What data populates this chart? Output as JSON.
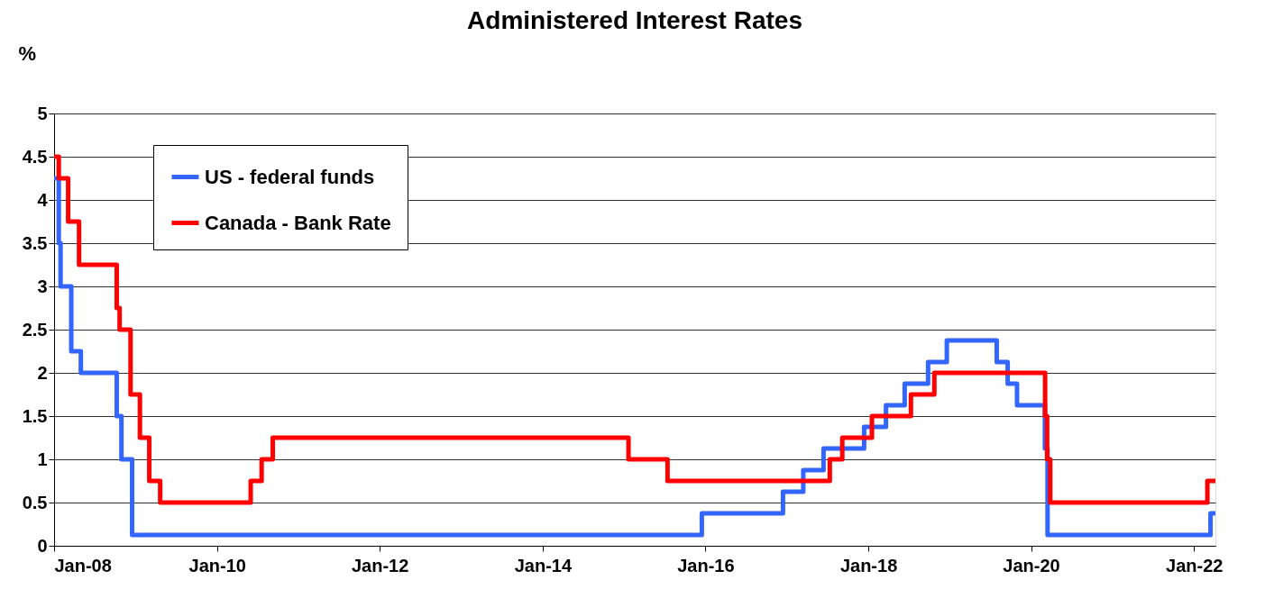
{
  "chart_data": {
    "type": "step",
    "title": "Administered Interest Rates",
    "ylabel": "%",
    "xlim": [
      "2008-01-01",
      "2022-04-07"
    ],
    "xticks": [
      {
        "value": "2008-01-01",
        "label": "Jan-08"
      },
      {
        "value": "2010-01-01",
        "label": "Jan-10"
      },
      {
        "value": "2012-01-01",
        "label": "Jan-12"
      },
      {
        "value": "2014-01-01",
        "label": "Jan-14"
      },
      {
        "value": "2016-01-01",
        "label": "Jan-16"
      },
      {
        "value": "2018-01-01",
        "label": "Jan-18"
      },
      {
        "value": "2020-01-01",
        "label": "Jan-20"
      },
      {
        "value": "2022-01-01",
        "label": "Jan-22"
      }
    ],
    "ylim": [
      0,
      5
    ],
    "yticks": [
      0,
      0.5,
      1,
      1.5,
      2,
      2.5,
      3,
      3.5,
      4,
      4.5,
      5
    ],
    "grid": "y",
    "legend": "top left",
    "line_style": "solid",
    "marker": "none",
    "series": [
      {
        "name": "US - federal funds",
        "color": "#3366ff",
        "x": [
          "2008-01-01",
          "2008-01-22",
          "2008-01-30",
          "2008-03-18",
          "2008-04-30",
          "2008-10-08",
          "2008-10-29",
          "2008-12-16",
          "2015-12-16",
          "2016-12-14",
          "2017-03-15",
          "2017-06-14",
          "2017-12-13",
          "2018-03-21",
          "2018-06-13",
          "2018-09-26",
          "2018-12-19",
          "2019-07-31",
          "2019-09-18",
          "2019-10-30",
          "2020-03-03",
          "2020-03-15",
          "2022-03-16",
          "2022-04-07"
        ],
        "values": [
          4.25,
          3.5,
          3.0,
          2.25,
          2.0,
          1.5,
          1.0,
          0.125,
          0.375,
          0.625,
          0.875,
          1.125,
          1.375,
          1.625,
          1.875,
          2.125,
          2.375,
          2.125,
          1.875,
          1.625,
          1.125,
          0.125,
          0.375,
          0.375
        ]
      },
      {
        "name": "Canada - Bank Rate",
        "color": "#ff0000",
        "x": [
          "2008-01-01",
          "2008-01-22",
          "2008-03-04",
          "2008-04-22",
          "2008-10-08",
          "2008-10-21",
          "2008-12-09",
          "2009-01-20",
          "2009-03-03",
          "2009-04-21",
          "2010-06-01",
          "2010-07-20",
          "2010-09-08",
          "2015-01-21",
          "2015-07-15",
          "2017-07-12",
          "2017-09-06",
          "2018-01-17",
          "2018-07-11",
          "2018-10-24",
          "2020-03-04",
          "2020-03-13",
          "2020-03-27",
          "2022-03-02",
          "2022-04-07"
        ],
        "values": [
          4.5,
          4.25,
          3.75,
          3.25,
          2.75,
          2.5,
          1.75,
          1.25,
          0.75,
          0.5,
          0.75,
          1.0,
          1.25,
          1.0,
          0.75,
          1.0,
          1.25,
          1.5,
          1.75,
          2.0,
          1.5,
          1.0,
          0.5,
          0.75,
          0.75
        ]
      }
    ]
  }
}
